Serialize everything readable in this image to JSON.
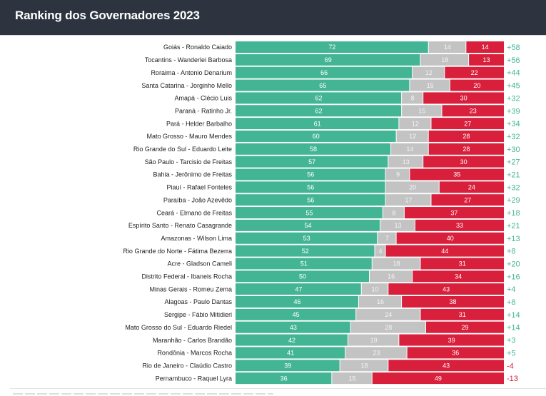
{
  "header": {
    "title": "Ranking dos Governadores 2023"
  },
  "colors": {
    "header_bg": "#2d3440",
    "approve": "#43b595",
    "neutral": "#c3c3c3",
    "disapprove": "#d8203c",
    "net_positive": "#43b595",
    "net_negative": "#d8203c"
  },
  "chart_data": {
    "type": "bar",
    "stacked": true,
    "orientation": "horizontal",
    "title": "Ranking dos Governadores 2023",
    "xlabel": "",
    "ylabel": "",
    "xlim": [
      0,
      100
    ],
    "grid": false,
    "legend": "none",
    "series_names": [
      "Aprova",
      "Neutro",
      "Desaprova"
    ],
    "categories": [
      "Goiás - Ronaldo Caiado",
      "Tocantins - Wanderlei Barbosa",
      "Roraima - Antonio Denarium",
      "Santa Catarina - Jorginho Mello",
      "Amapá - Clécio Luis",
      "Paraná - Ratinho Jr.",
      "Pará - Helder Barbalho",
      "Mato Grosso - Mauro Mendes",
      "Rio Grande do Sul - Eduardo Leite",
      "São Paulo - Tarcisio de Freitas",
      "Bahia - Jerônimo de Freitas",
      "Piauí - Rafael Fonteles",
      "Paraíba - João Azevêdo",
      "Ceará - Elmano de Freitas",
      "Espírito Santo - Renato Casagrande",
      "Amazonas - Wilson Lima",
      "Rio Grande do Norte - Fátima Bezerra",
      "Acre - Gladson Cameli",
      "Distrito Federal - Ibaneis Rocha",
      "Minas Gerais - Romeu Zema",
      "Alagoas - Paulo Dantas",
      "Sergipe - Fábio Mitidieri",
      "Mato Grosso do Sul - Eduardo Riedel",
      "Maranhão - Carlos Brandão",
      "Rondônia - Marcos Rocha",
      "Rio de Janeiro - Claúdio Castro",
      "Pernambuco - Raquel Lyra"
    ],
    "series": [
      {
        "name": "Aprova",
        "values": [
          72,
          69,
          66,
          65,
          62,
          62,
          61,
          60,
          58,
          57,
          56,
          56,
          56,
          55,
          54,
          53,
          52,
          51,
          50,
          47,
          46,
          45,
          43,
          42,
          41,
          39,
          36
        ]
      },
      {
        "name": "Neutro",
        "values": [
          14,
          18,
          12,
          15,
          8,
          15,
          12,
          12,
          14,
          13,
          9,
          20,
          17,
          8,
          13,
          7,
          4,
          18,
          16,
          10,
          16,
          24,
          28,
          19,
          23,
          18,
          15
        ]
      },
      {
        "name": "Desaprova",
        "values": [
          14,
          13,
          22,
          20,
          30,
          23,
          27,
          28,
          28,
          30,
          35,
          24,
          27,
          37,
          33,
          40,
          44,
          31,
          34,
          43,
          38,
          31,
          29,
          39,
          36,
          43,
          49
        ]
      }
    ],
    "net_labels": [
      "+58",
      "+56",
      "+44",
      "+45",
      "+32",
      "+39",
      "+34",
      "+32",
      "+30",
      "+27",
      "+21",
      "+32",
      "+29",
      "+18",
      "+21",
      "+13",
      "+8",
      "+20",
      "+16",
      "+4",
      "+8",
      "+14",
      "+14",
      "+3",
      "+5",
      "-4",
      "-13"
    ]
  }
}
